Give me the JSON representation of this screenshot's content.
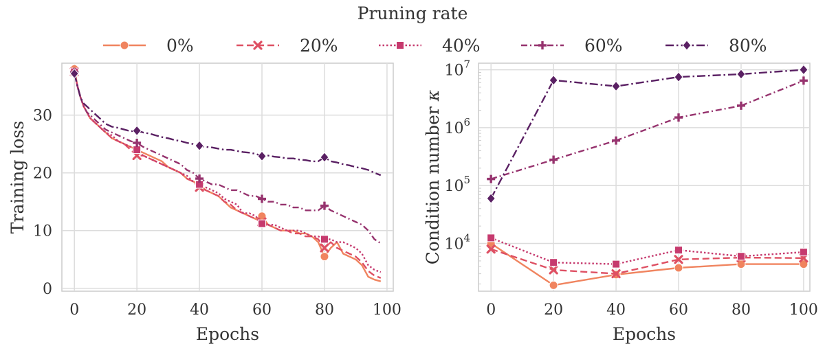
{
  "legend": {
    "title": "Pruning rate",
    "placement": "top-center",
    "entries": [
      {
        "name": "0%",
        "color": "#f0845f",
        "dash": "solid",
        "marker": "circle"
      },
      {
        "name": "20%",
        "color": "#de5063",
        "dash": "dashed",
        "marker": "x"
      },
      {
        "name": "40%",
        "color": "#c63a6e",
        "dash": "dotted",
        "marker": "square"
      },
      {
        "name": "60%",
        "color": "#96336e",
        "dash": "dashdot-short",
        "marker": "plus"
      },
      {
        "name": "80%",
        "color": "#5a2063",
        "dash": "dashdot",
        "marker": "diamond"
      }
    ]
  },
  "chart_data": [
    {
      "type": "line",
      "xlabel": "Epochs",
      "ylabel": "Training loss",
      "xlim": [
        -4,
        102
      ],
      "ylim": [
        -0.5,
        39
      ],
      "xticks": [
        0,
        20,
        40,
        60,
        80,
        100
      ],
      "yticks": [
        0,
        10,
        20,
        30
      ],
      "grid": true,
      "x": [
        0,
        1,
        2,
        3,
        4,
        5,
        6,
        7,
        8,
        9,
        10,
        12,
        14,
        16,
        18,
        20,
        22,
        24,
        26,
        28,
        30,
        32,
        34,
        36,
        38,
        40,
        42,
        44,
        46,
        48,
        50,
        52,
        54,
        56,
        58,
        60,
        62,
        64,
        66,
        68,
        70,
        72,
        74,
        76,
        78,
        80,
        82,
        84,
        86,
        88,
        90,
        92,
        94,
        96,
        98
      ],
      "marker_x": [
        0,
        20,
        40,
        60,
        80
      ],
      "series": [
        {
          "name": "0%",
          "values": [
            38,
            35,
            33,
            31.5,
            30.5,
            29.5,
            29,
            28.5,
            28,
            27.5,
            27,
            26,
            25.5,
            25,
            24.5,
            24,
            23.5,
            23,
            22.5,
            22,
            21,
            20.5,
            20,
            19,
            18.5,
            18,
            17,
            16.5,
            16,
            15,
            14,
            13.5,
            13,
            12.5,
            12,
            12.5,
            11,
            10.5,
            10,
            10,
            10,
            9.5,
            9.5,
            9,
            8,
            5.5,
            7,
            8,
            6,
            5.5,
            5,
            4,
            2,
            1.5,
            1.2
          ]
        },
        {
          "name": "20%",
          "values": [
            37.5,
            35,
            33,
            31.5,
            30.5,
            29.5,
            29,
            28.5,
            28,
            27.5,
            27,
            26,
            25.5,
            25,
            24,
            23,
            23,
            22.5,
            22,
            21.5,
            21,
            20.5,
            20,
            19,
            18.5,
            17.5,
            17,
            16.5,
            16,
            15,
            14.5,
            13.5,
            13,
            12.5,
            12,
            11.5,
            11,
            10.5,
            10,
            10,
            9.5,
            9.5,
            9,
            9,
            8.5,
            7,
            8,
            7,
            6.5,
            6,
            5.5,
            4.5,
            3,
            2.2,
            1.8
          ]
        },
        {
          "name": "40%",
          "values": [
            37.5,
            35,
            33,
            31.5,
            30.5,
            29.5,
            29,
            28.5,
            28,
            27.5,
            27,
            26.5,
            25.5,
            25,
            24.5,
            24,
            23,
            22.5,
            22,
            21.5,
            21,
            20.5,
            20,
            19.5,
            18.5,
            18,
            17.5,
            17,
            16.5,
            15.5,
            15,
            14.5,
            13,
            13,
            12.5,
            11.2,
            11,
            11,
            10.5,
            10,
            10,
            10,
            9.5,
            9,
            9,
            8.5,
            8.5,
            8,
            8,
            7.5,
            7,
            6,
            4,
            3.2,
            2.8
          ]
        },
        {
          "name": "60%",
          "values": [
            37.5,
            35,
            33,
            31.5,
            30.5,
            30,
            29.5,
            29,
            28.5,
            28,
            27.5,
            27,
            26.5,
            26,
            25.5,
            25.2,
            24.5,
            24,
            23.5,
            23,
            22.5,
            22,
            21.5,
            20.5,
            20,
            19,
            18.5,
            18,
            18,
            17.5,
            17,
            17,
            16.5,
            16,
            16,
            15.5,
            15,
            15,
            14.5,
            14.5,
            14,
            14,
            13.5,
            13.5,
            13.5,
            14.3,
            13.5,
            13,
            12.5,
            12,
            11.5,
            11,
            10,
            8.5,
            7.8
          ]
        },
        {
          "name": "80%",
          "values": [
            37.2,
            35,
            33,
            32,
            31.5,
            31,
            30.5,
            30,
            29.5,
            29,
            28.5,
            28,
            27.8,
            27.5,
            27.2,
            27.3,
            27,
            26.8,
            26.5,
            26.2,
            26,
            25.7,
            25.5,
            25.2,
            25,
            24.7,
            24.5,
            24.4,
            24.2,
            24,
            24,
            23.8,
            23.6,
            23.5,
            23.3,
            22.9,
            23,
            22.8,
            22.7,
            22.5,
            22.5,
            22.3,
            22.2,
            22,
            22,
            22.7,
            22,
            21.8,
            21.5,
            21.3,
            21,
            20.8,
            20.5,
            20,
            19.6
          ]
        }
      ]
    },
    {
      "type": "line",
      "xlabel": "Epochs",
      "ylabel": "Condition number κ",
      "yscale": "log",
      "xlim": [
        -4,
        102
      ],
      "ylim": [
        1500,
        13000000
      ],
      "xticks": [
        0,
        20,
        40,
        60,
        80,
        100
      ],
      "yticks": [
        10000,
        100000,
        1000000,
        10000000
      ],
      "ytick_labels": [
        {
          "base": "10",
          "exp": "4"
        },
        {
          "base": "10",
          "exp": "5"
        },
        {
          "base": "10",
          "exp": "6"
        },
        {
          "base": "10",
          "exp": "7"
        }
      ],
      "grid": true,
      "x": [
        0,
        20,
        40,
        60,
        80,
        100
      ],
      "series": [
        {
          "name": "0%",
          "values": [
            10000,
            1900,
            2900,
            3800,
            4400,
            4400
          ]
        },
        {
          "name": "20%",
          "values": [
            8000,
            3500,
            3000,
            5300,
            5700,
            5600
          ]
        },
        {
          "name": "40%",
          "values": [
            12500,
            4700,
            4400,
            7700,
            6000,
            7100
          ]
        },
        {
          "name": "60%",
          "values": [
            130000,
            280000,
            600000,
            1500000,
            2400000,
            6500000
          ]
        },
        {
          "name": "80%",
          "values": [
            60000,
            6600000,
            5200000,
            7500000,
            8400000,
            10000000
          ]
        }
      ]
    }
  ]
}
